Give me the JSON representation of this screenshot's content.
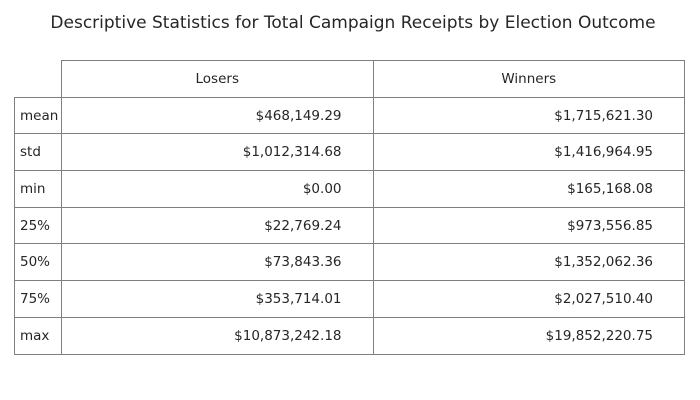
{
  "chart_data": {
    "type": "table",
    "title": "Descriptive Statistics for Total Campaign Receipts by Election Outcome",
    "columns": [
      "Losers",
      "Winners"
    ],
    "rows": [
      {
        "label": "mean",
        "values": [
          "$468,149.29",
          "$1,715,621.30"
        ]
      },
      {
        "label": "std",
        "values": [
          "$1,012,314.68",
          "$1,416,964.95"
        ]
      },
      {
        "label": "min",
        "values": [
          "$0.00",
          "$165,168.08"
        ]
      },
      {
        "label": "25%",
        "values": [
          "$22,769.24",
          "$973,556.85"
        ]
      },
      {
        "label": "50%",
        "values": [
          "$73,843.36",
          "$1,352,062.36"
        ]
      },
      {
        "label": "75%",
        "values": [
          "$353,714.01",
          "$2,027,510.40"
        ]
      },
      {
        "label": "max",
        "values": [
          "$10,873,242.18",
          "$19,852,220.75"
        ]
      }
    ]
  }
}
